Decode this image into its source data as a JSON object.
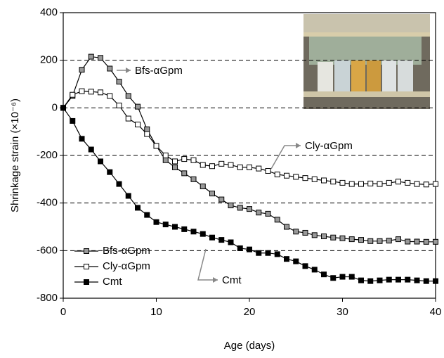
{
  "chart_data": {
    "type": "line",
    "x_label": "Age (days)",
    "y_label": "Shrinkage strain (×10⁻⁶)",
    "x": [
      0,
      1,
      2,
      3,
      4,
      5,
      6,
      7,
      8,
      9,
      10,
      11,
      12,
      13,
      14,
      15,
      16,
      17,
      18,
      19,
      20,
      21,
      22,
      23,
      24,
      25,
      26,
      27,
      28,
      29,
      30,
      31,
      32,
      33,
      34,
      35,
      36,
      37,
      38,
      39,
      40
    ],
    "series": [
      {
        "name": "Bfs-αGpm",
        "color": "#999999",
        "values": [
          0,
          50,
          160,
          215,
          210,
          165,
          110,
          50,
          5,
          -90,
          -160,
          -220,
          -250,
          -275,
          -300,
          -330,
          -360,
          -385,
          -410,
          -420,
          -425,
          -440,
          -445,
          -470,
          -500,
          -520,
          -525,
          -535,
          -540,
          -545,
          -548,
          -552,
          -555,
          -560,
          -560,
          -558,
          -552,
          -562,
          -562,
          -563,
          -563
        ]
      },
      {
        "name": "Cly-αGpm",
        "color": "#ffffff",
        "values": [
          0,
          55,
          70,
          68,
          65,
          50,
          10,
          -45,
          -70,
          -110,
          -160,
          -200,
          -225,
          -215,
          -220,
          -240,
          -245,
          -235,
          -240,
          -250,
          -250,
          -255,
          -265,
          -280,
          -285,
          -290,
          -295,
          -300,
          -305,
          -310,
          -315,
          -320,
          -320,
          -318,
          -320,
          -315,
          -310,
          -315,
          -320,
          -322,
          -320
        ]
      },
      {
        "name": "Cmt",
        "color": "#000000",
        "values": [
          0,
          -55,
          -130,
          -175,
          -225,
          -270,
          -320,
          -370,
          -420,
          -450,
          -480,
          -490,
          -500,
          -510,
          -520,
          -530,
          -545,
          -555,
          -565,
          -590,
          -595,
          -610,
          -610,
          -615,
          -635,
          -645,
          -665,
          -680,
          -700,
          -715,
          -710,
          -710,
          -725,
          -728,
          -725,
          -722,
          -722,
          -722,
          -725,
          -728,
          -728
        ]
      }
    ],
    "annotations": [
      "Bfs-αGpm",
      "Cly-αGpm",
      "Cmt"
    ],
    "xlim": [
      0,
      40
    ],
    "xticks": [
      0,
      10,
      20,
      30,
      40
    ],
    "ylim": [
      -800,
      400
    ],
    "yticks": [
      -800,
      -600,
      -400,
      -200,
      0,
      200,
      400
    ],
    "grid": true,
    "legend": "lower left"
  }
}
